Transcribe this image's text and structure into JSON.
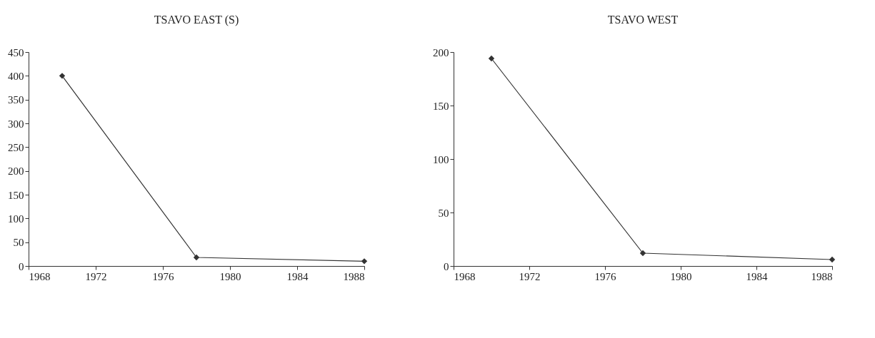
{
  "chart_data": [
    {
      "type": "line",
      "title": "TSAVO EAST (S)",
      "x": [
        1970,
        1978,
        1988
      ],
      "series": [
        {
          "color": "#333333",
          "values": [
            400,
            18,
            10
          ]
        }
      ],
      "xlim": [
        1968,
        1988
      ],
      "xticks": [
        1968,
        1972,
        1976,
        1980,
        1984,
        1988
      ],
      "ylim": [
        0,
        450
      ],
      "yticks": [
        0,
        50,
        100,
        150,
        200,
        250,
        300,
        350,
        400,
        450
      ],
      "marker": "diamond",
      "line_style": "solid"
    },
    {
      "type": "line",
      "title": "TSAVO WEST",
      "x": [
        1970,
        1978,
        1988
      ],
      "series": [
        {
          "color": "#333333",
          "values": [
            194,
            12,
            6
          ]
        }
      ],
      "xlim": [
        1968,
        1988
      ],
      "xticks": [
        1968,
        1972,
        1976,
        1980,
        1984,
        1988
      ],
      "ylim": [
        0,
        200
      ],
      "yticks": [
        0,
        50,
        100,
        150,
        200
      ],
      "marker": "diamond",
      "line_style": "solid"
    }
  ]
}
